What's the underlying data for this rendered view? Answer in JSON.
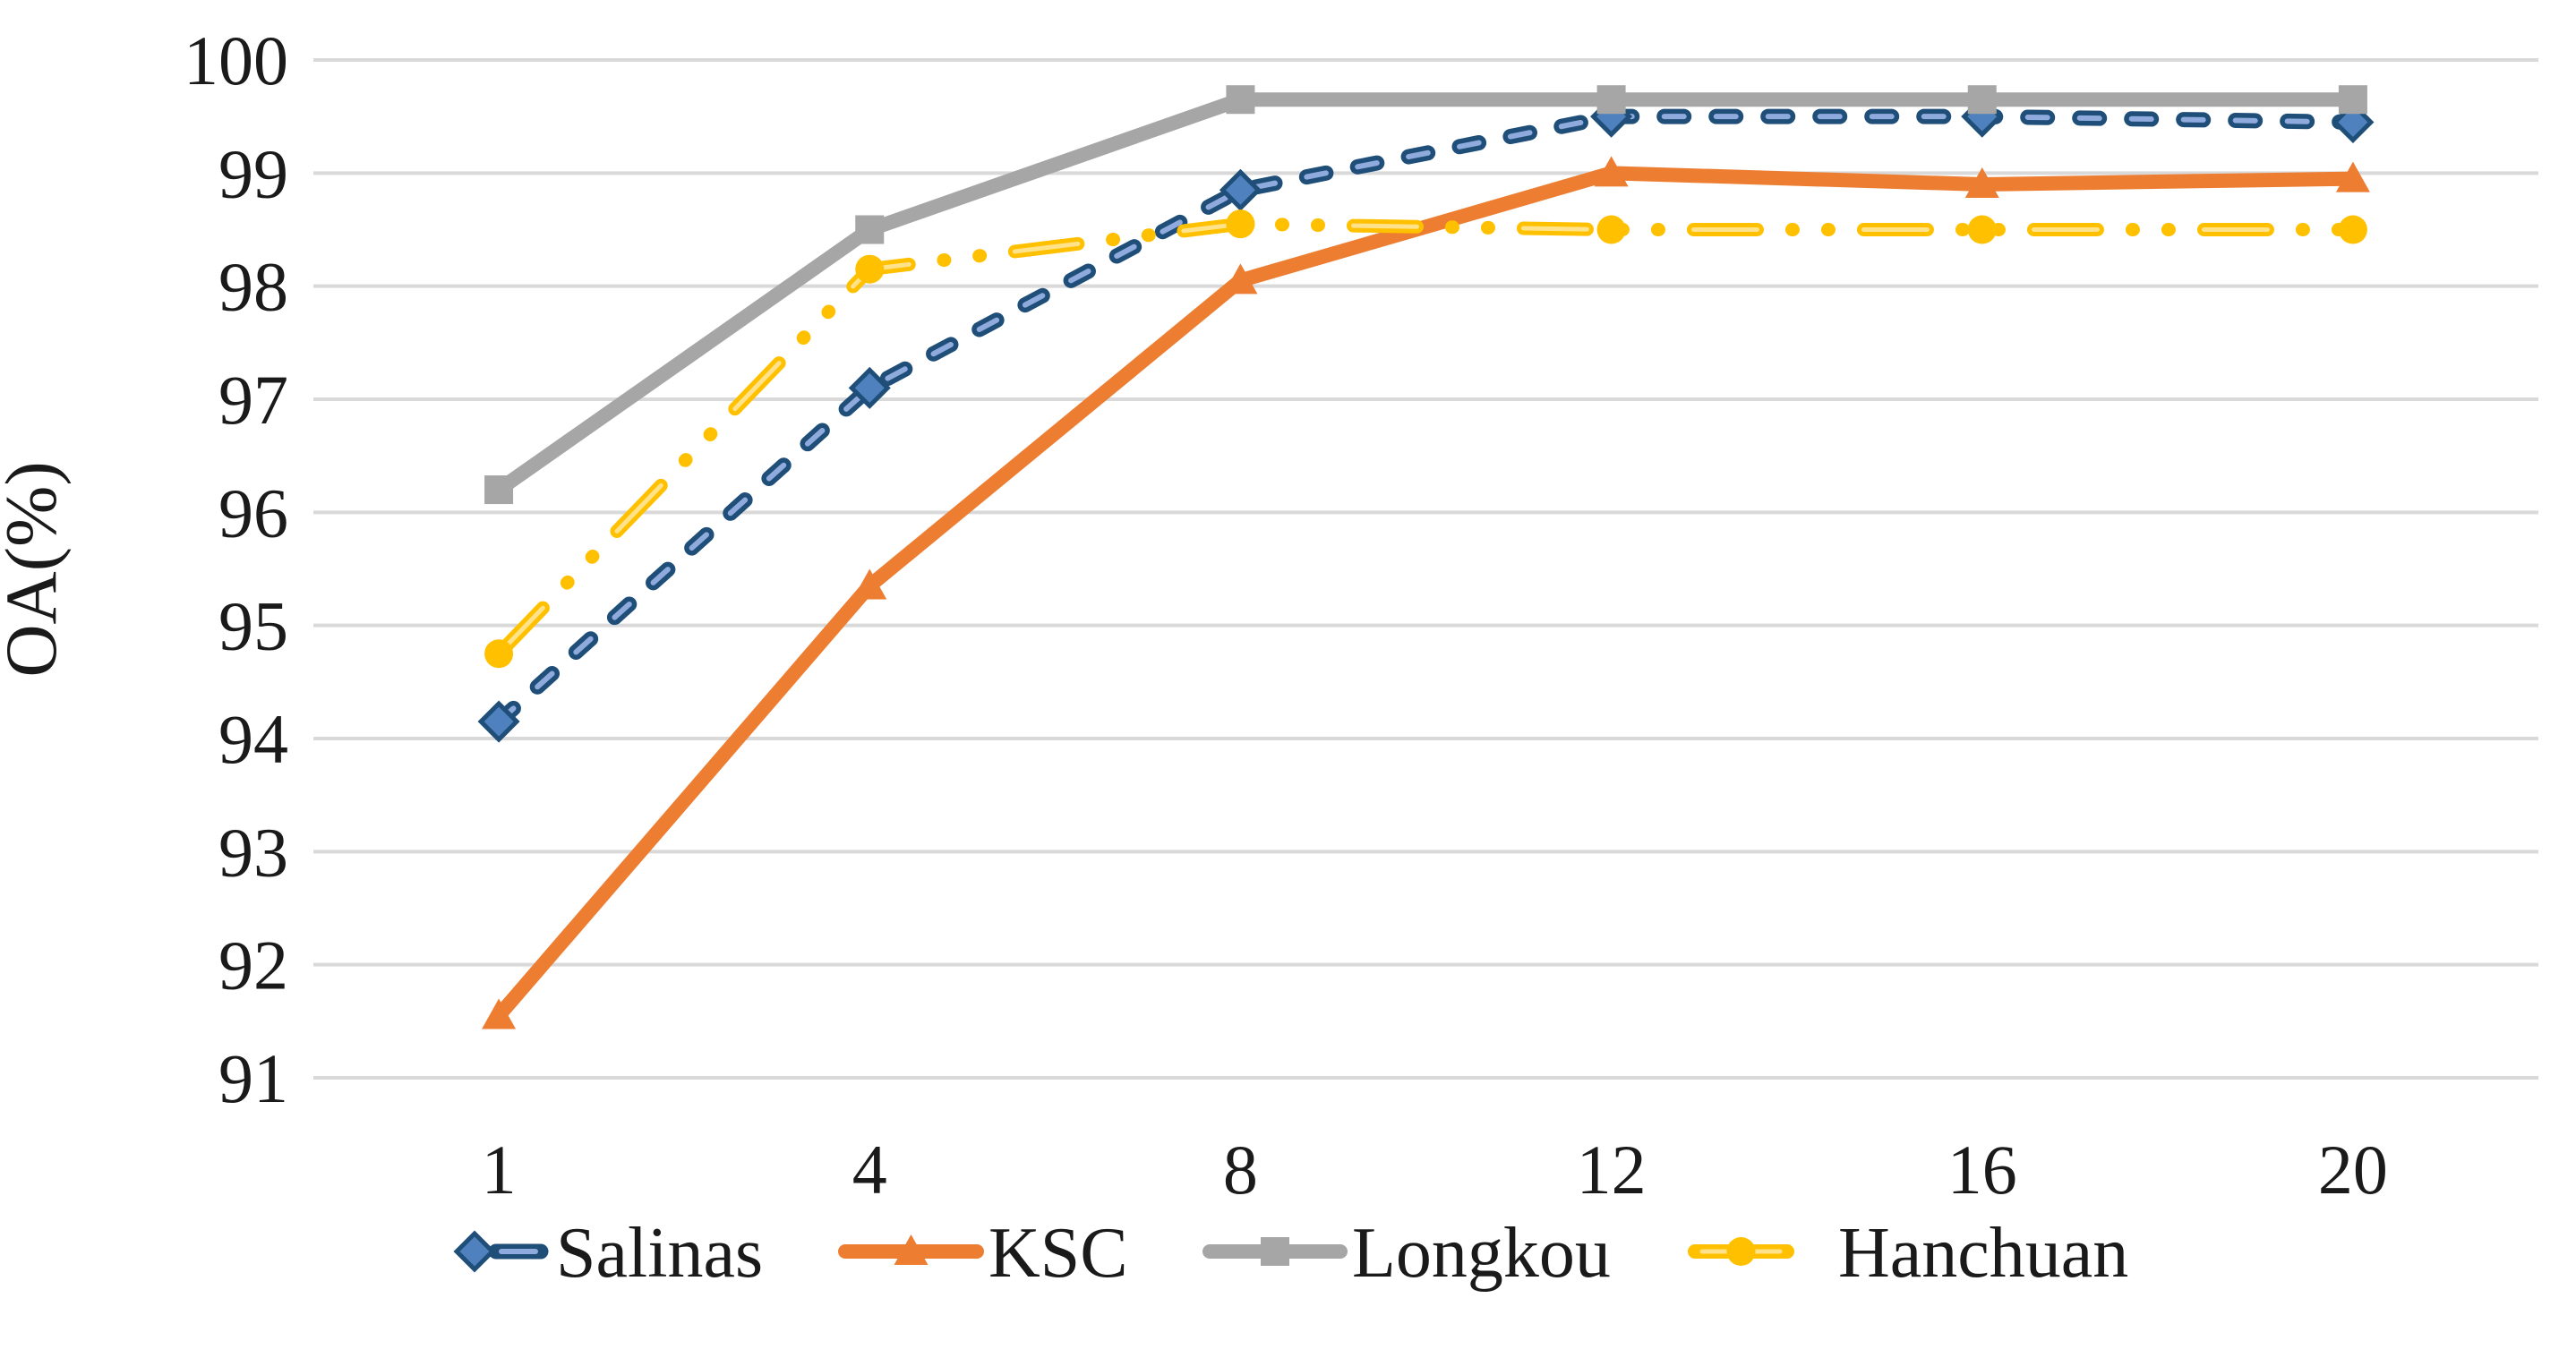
{
  "chart_data": {
    "type": "line",
    "title": "",
    "xlabel": "",
    "ylabel": "OA(%)",
    "ylim": [
      91,
      100
    ],
    "ytick_step": 1,
    "yticks": [
      "100",
      "99",
      "98",
      "97",
      "96",
      "95",
      "94",
      "93",
      "92",
      "91"
    ],
    "ytick_values": [
      100,
      99,
      98,
      97,
      96,
      95,
      94,
      93,
      92,
      91
    ],
    "categories": [
      "1",
      "4",
      "8",
      "12",
      "16",
      "20"
    ],
    "grid": "horizontal-only",
    "gridline_color": "#D9D9D9",
    "background_color": "#FFFFFF",
    "legend_position": "bottom",
    "series": [
      {
        "name": "Salinas",
        "line_style": "dashed",
        "color": "#1F4E79",
        "core_color": "#8FAADC",
        "marker": "diamond",
        "marker_fill": "#4E81BD",
        "marker_edge": "#1F4E79",
        "values": [
          94.15,
          97.1,
          98.85,
          99.5,
          99.5,
          99.45
        ]
      },
      {
        "name": "KSC",
        "line_style": "solid",
        "color": "#ED7D31",
        "marker": "triangle",
        "marker_fill": "#ED7D31",
        "values": [
          91.55,
          95.35,
          98.05,
          99.0,
          98.9,
          98.95
        ]
      },
      {
        "name": "Longkou",
        "line_style": "solid",
        "color": "#A6A6A6",
        "marker": "square",
        "marker_fill": "#A6A6A6",
        "values": [
          96.2,
          98.5,
          99.65,
          99.65,
          99.65,
          99.65
        ]
      },
      {
        "name": "Hanchuan",
        "line_style": "dash-dot-dot",
        "color": "#FFC000",
        "core_color": "#FFE28A",
        "marker": "circle",
        "marker_fill": "#FFC000",
        "values": [
          94.75,
          98.15,
          98.55,
          98.5,
          98.5,
          98.5
        ]
      }
    ]
  }
}
